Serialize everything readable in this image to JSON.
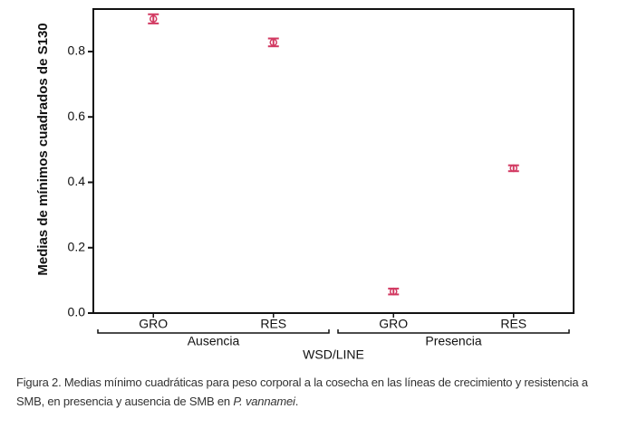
{
  "chart_data": {
    "type": "errorbar",
    "y_label": "Medias de mínimos cuadrados de S130",
    "x_label": "WSD/LINE",
    "categories": [
      "GRO",
      "RES",
      "GRO",
      "RES"
    ],
    "groups": [
      {
        "name": "Ausencia",
        "size": 2
      },
      {
        "name": "Presencia",
        "size": 2
      }
    ],
    "values": [
      0.9,
      0.828,
      0.066,
      0.443
    ],
    "errors": [
      0.014,
      0.012,
      0.009,
      0.009
    ],
    "color": "#d23a62",
    "ylim": [
      0,
      0.93
    ],
    "yticks": [
      {
        "value": 0,
        "label": "0.0"
      },
      0.2,
      0.4,
      0.6,
      0.8
    ],
    "caption": {
      "line1": "Figura 2. Medias mínimo cuadráticas para peso corporal a la cosecha en las líneas de crecimiento y resistencia a",
      "line2": "SMB, en presencia y ausencia de SMB en",
      "species": "P. vannamei",
      "end": "."
    }
  }
}
